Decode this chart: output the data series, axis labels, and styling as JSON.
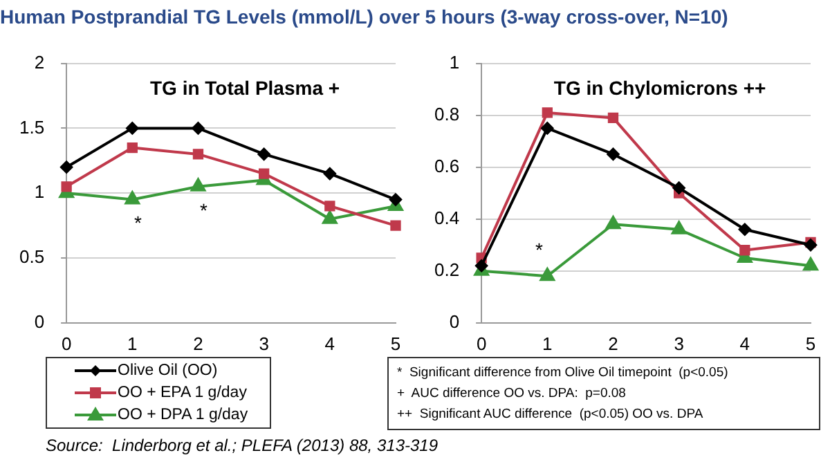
{
  "chart_data": [
    {
      "type": "line",
      "title": "TG in Total Plasma +",
      "categories": [
        "0",
        "1",
        "2",
        "3",
        "4",
        "5"
      ],
      "ylim": [
        0,
        2
      ],
      "yticks": [
        0,
        0.5,
        1,
        1.5,
        2
      ],
      "grid": "y",
      "legend": "bottom",
      "line_style": "solid",
      "series": [
        {
          "name": "Olive Oil (OO)",
          "color": "#000000",
          "marker": "diamond",
          "values": [
            1.2,
            1.5,
            1.5,
            1.3,
            1.15,
            0.95
          ]
        },
        {
          "name": "OO + EPA 1 g/day",
          "color": "#c0394b",
          "marker": "square",
          "values": [
            1.05,
            1.35,
            1.3,
            1.15,
            0.9,
            0.75
          ]
        },
        {
          "name": "OO + DPA 1 g/day",
          "color": "#3a9a3a",
          "marker": "triangle",
          "values": [
            1.0,
            0.95,
            1.05,
            1.1,
            0.8,
            0.9
          ]
        }
      ],
      "annotations": [
        "Human Postprandial TG Levels (mmol/L) over 5 hours (3-way cross-over, N=10)",
        "Source:  Linderborg et al.; PLEFA (2013) 88, 313-319",
        {
          "text": "*",
          "x": "1",
          "y": 0.95
        },
        {
          "text": "*",
          "x": "2",
          "y": 1.05
        }
      ]
    },
    {
      "type": "line",
      "title": "TG in Chylomicrons ++",
      "categories": [
        "0",
        "1",
        "2",
        "3",
        "4",
        "5"
      ],
      "ylim": [
        0,
        1
      ],
      "yticks": [
        0,
        0.2,
        0.4,
        0.6,
        0.8,
        1
      ],
      "grid": "y",
      "line_style": "solid",
      "series": [
        {
          "color": "#000000",
          "marker": "diamond",
          "values": [
            0.22,
            0.75,
            0.65,
            0.52,
            0.36,
            0.3
          ]
        },
        {
          "color": "#c0394b",
          "marker": "square",
          "values": [
            0.25,
            0.81,
            0.79,
            0.5,
            0.28,
            0.31
          ]
        },
        {
          "color": "#3a9a3a",
          "marker": "triangle",
          "values": [
            0.2,
            0.18,
            0.38,
            0.36,
            0.25,
            0.22
          ]
        }
      ],
      "annotations": [
        "*  Significant difference from Olive Oil timepoint  (p<0.05)",
        "+  AUC difference OO vs. DPA:  p=0.08",
        "++  Significant AUC difference  (p<0.05) OO vs. DPA",
        {
          "text": "*",
          "x": "1",
          "y": 0.18
        }
      ]
    }
  ]
}
